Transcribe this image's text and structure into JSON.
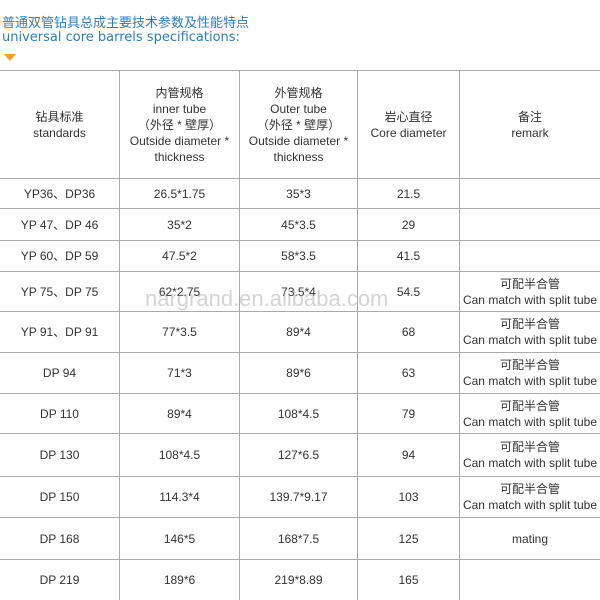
{
  "title": {
    "cn": "普通双管钻具总成主要技术参数及性能特点",
    "en": "universal core barrels specifications:"
  },
  "watermark": "nargrand.en.alibaba.com",
  "table": {
    "header": [
      [
        "钻具标准",
        "standards"
      ],
      [
        "内管规格",
        "inner tube",
        "（外径 * 壁厚）",
        "Outside diameter *",
        "thickness"
      ],
      [
        "外管规格",
        "Outer tube",
        "（外径 * 壁厚）",
        "Outside diameter *",
        "thickness"
      ],
      [
        "岩心直径",
        "Core diameter"
      ],
      [
        "备注",
        "remark"
      ]
    ],
    "rows": [
      [
        "YP36、DP36",
        "26.5*1.75",
        "35*3",
        "21.5"
      ],
      [
        "YP 47、DP 46",
        "35*2",
        "45*3.5",
        "29"
      ],
      [
        "YP 60、DP 59",
        "47.5*2",
        "58*3.5",
        "41.5"
      ],
      [
        "YP 75、DP 75",
        "62*2.75",
        "73.5*4",
        "54.5",
        [
          "可配半合管",
          "Can match with split tube"
        ]
      ],
      [
        "YP 91、DP 91",
        "77*3.5",
        "89*4",
        "68",
        [
          "可配半合管",
          "Can match with split tube"
        ]
      ],
      [
        "DP 94",
        "71*3",
        "89*6",
        "63",
        [
          "可配半合管",
          "Can match with split tube"
        ]
      ],
      [
        "DP 110",
        "89*4",
        "108*4.5",
        "79",
        [
          "可配半合管",
          "Can match with split tube"
        ]
      ],
      [
        "DP 130",
        "108*4.5",
        "127*6.5",
        "94",
        [
          "可配半合管",
          "Can match with split tube"
        ]
      ],
      [
        "DP 150",
        "114.3*4",
        "139.7*9.17",
        "103",
        [
          "可配半合管",
          "Can match with split tube"
        ]
      ],
      [
        "DP 168",
        "146*5",
        "168*7.5",
        "125",
        [
          "mating"
        ]
      ],
      [
        "DP 219",
        "189*6",
        "219*8.89",
        "165"
      ]
    ]
  }
}
